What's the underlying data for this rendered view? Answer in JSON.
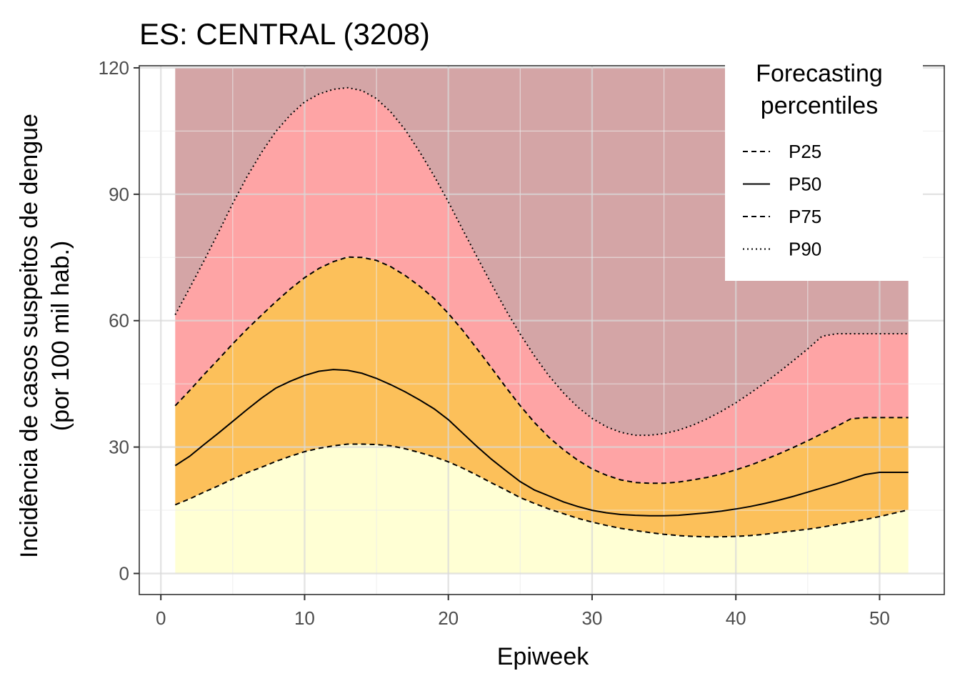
{
  "chart_data": {
    "type": "area",
    "title": "ES: CENTRAL (3208)",
    "xlabel": "Epiweek",
    "ylabel_line1": "Incidência de casos suspeitos de dengue",
    "ylabel_line2": "(por 100 mil hab.)",
    "xlim": [
      -1.5,
      54.5
    ],
    "ylim": [
      -5,
      120.5
    ],
    "x_ticks": [
      0,
      10,
      20,
      30,
      40,
      50
    ],
    "x_tick_labels": [
      "0",
      "10",
      "20",
      "30",
      "40",
      "50"
    ],
    "y_ticks": [
      0,
      30,
      60,
      90,
      120
    ],
    "y_tick_labels": [
      "0",
      "30",
      "60",
      "90",
      "120"
    ],
    "grid": true,
    "legend_position": "top-right",
    "legend": {
      "title_line1": "Forecasting",
      "title_line2": "percentiles",
      "entries": [
        {
          "label": "P25",
          "linestyle": "dashed"
        },
        {
          "label": "P50",
          "linestyle": "solid"
        },
        {
          "label": "P75",
          "linestyle": "dashed"
        },
        {
          "label": "P90",
          "linestyle": "dotted"
        }
      ]
    },
    "band_colors": {
      "below_p25": "#ffffd4",
      "p25_p75": "#fcc05a",
      "p75_p90": "#fea4a5",
      "above_p90": "#d4a5a6"
    },
    "band_top": 120,
    "x": [
      1,
      2,
      3,
      4,
      5,
      6,
      7,
      8,
      9,
      10,
      11,
      12,
      13,
      14,
      15,
      16,
      17,
      18,
      19,
      20,
      21,
      22,
      23,
      24,
      25,
      26,
      27,
      28,
      29,
      30,
      31,
      32,
      33,
      34,
      35,
      36,
      37,
      38,
      39,
      40,
      41,
      42,
      43,
      44,
      45,
      46,
      47,
      48,
      49,
      50,
      51,
      52
    ],
    "series": [
      {
        "name": "P25",
        "values": [
          16.3,
          17.7,
          19.3,
          20.8,
          22.4,
          23.9,
          25.2,
          26.6,
          27.8,
          28.9,
          29.7,
          30.3,
          30.7,
          30.7,
          30.6,
          30.3,
          29.6,
          28.7,
          27.7,
          26.5,
          25.0,
          23.3,
          21.5,
          19.8,
          18.0,
          16.6,
          15.3,
          14.2,
          13.1,
          12.2,
          11.4,
          10.7,
          10.2,
          9.7,
          9.3,
          9.0,
          8.8,
          8.7,
          8.7,
          8.8,
          9.0,
          9.3,
          9.7,
          10.1,
          10.5,
          11.0,
          11.6,
          12.2,
          12.8,
          13.5,
          14.3,
          15.1
        ]
      },
      {
        "name": "P50",
        "values": [
          25.6,
          27.8,
          30.6,
          33.3,
          36.1,
          38.9,
          41.6,
          44.0,
          45.6,
          47.0,
          48.0,
          48.4,
          48.2,
          47.5,
          46.3,
          44.8,
          43.1,
          41.2,
          39.1,
          36.5,
          33.3,
          30.1,
          27.1,
          24.4,
          21.8,
          19.8,
          18.4,
          17.0,
          15.9,
          15.0,
          14.4,
          14.0,
          13.8,
          13.7,
          13.7,
          13.8,
          14.1,
          14.4,
          14.8,
          15.3,
          15.9,
          16.6,
          17.4,
          18.3,
          19.3,
          20.3,
          21.3,
          22.4,
          23.5,
          24.0,
          24.0,
          24.0
        ]
      },
      {
        "name": "P75",
        "values": [
          39.8,
          43.4,
          47.2,
          50.8,
          54.5,
          58.0,
          61.3,
          64.5,
          67.5,
          70.2,
          72.4,
          74.0,
          75.1,
          75.0,
          74.3,
          72.8,
          70.7,
          68.2,
          65.3,
          61.7,
          57.7,
          53.3,
          48.8,
          44.2,
          39.8,
          35.8,
          32.3,
          29.4,
          26.9,
          24.8,
          23.3,
          22.2,
          21.6,
          21.4,
          21.4,
          21.7,
          22.2,
          22.8,
          23.6,
          24.6,
          25.7,
          27.0,
          28.4,
          29.9,
          31.5,
          33.2,
          34.9,
          36.7,
          37.0,
          37.0,
          37.0,
          37.0
        ]
      },
      {
        "name": "P90",
        "values": [
          61.4,
          67.7,
          74.2,
          80.9,
          87.8,
          94.2,
          99.9,
          104.9,
          108.8,
          111.9,
          113.8,
          114.9,
          115.3,
          114.6,
          112.7,
          109.5,
          105.3,
          100.1,
          94.4,
          88.2,
          81.6,
          75.1,
          68.7,
          62.5,
          56.8,
          51.6,
          46.9,
          42.9,
          39.5,
          36.8,
          34.8,
          33.5,
          32.8,
          32.8,
          33.2,
          34.0,
          35.2,
          36.7,
          38.5,
          40.5,
          42.8,
          45.2,
          47.8,
          50.5,
          53.3,
          56.3,
          56.9,
          56.9,
          56.9,
          56.9,
          56.9,
          56.9
        ]
      }
    ]
  }
}
